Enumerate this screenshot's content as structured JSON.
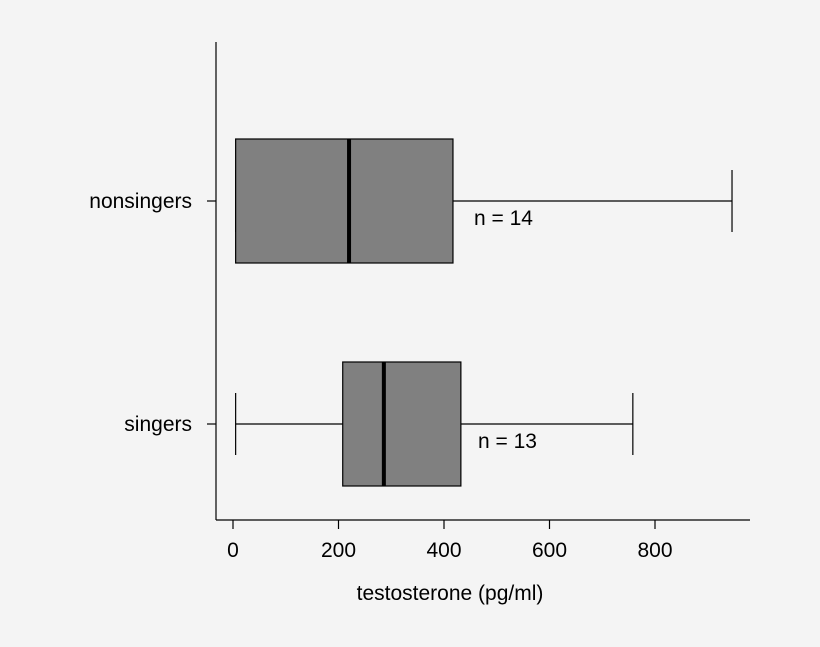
{
  "chart_data": {
    "type": "box",
    "orientation": "horizontal",
    "title": "",
    "xlabel": "testosterone (pg/ml)",
    "ylabel": "",
    "xlim": [
      -30,
      1020
    ],
    "xticks": [
      0,
      200,
      400,
      600,
      800
    ],
    "tick_labels": [
      "0",
      "200",
      "400",
      "600",
      "800"
    ],
    "grid": false,
    "colors": {
      "box_fill": "#808080",
      "line": "#000000",
      "background": "#f4f4f4"
    },
    "categories": [
      "nonsingers",
      "singers"
    ],
    "boxes": [
      {
        "category": "nonsingers",
        "whisker_low": 5,
        "q1": 5,
        "median": 220,
        "q3": 417,
        "whisker_high": 946,
        "annotation": "n = 14"
      },
      {
        "category": "singers",
        "whisker_low": 5,
        "q1": 208,
        "median": 286,
        "q3": 432,
        "whisker_high": 758,
        "annotation": "n = 13"
      }
    ]
  }
}
